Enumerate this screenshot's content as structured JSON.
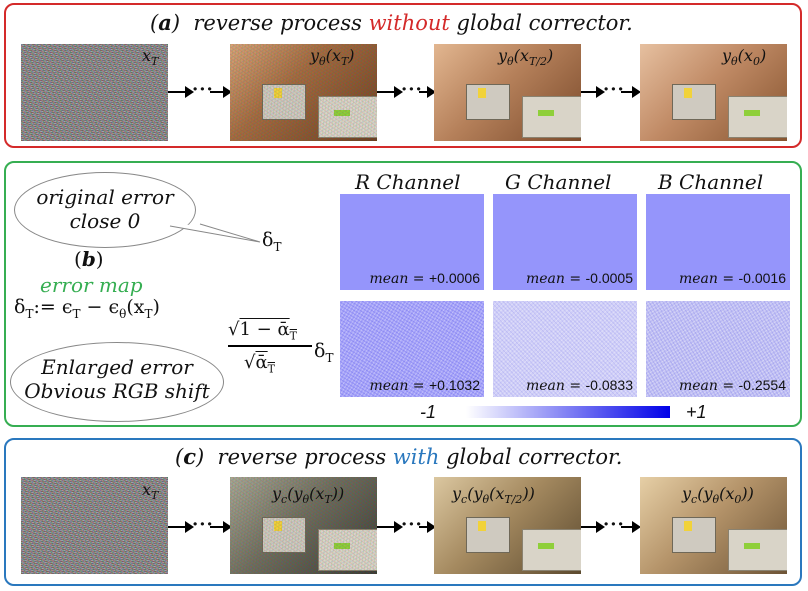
{
  "panel_a": {
    "label": "a",
    "title_before": "reverse process ",
    "title_highlight": "without",
    "title_after": " global corrector.",
    "images": [
      {
        "label": "x_T",
        "kind": "noise"
      },
      {
        "label": "yθ(x_T)",
        "kind": "scene"
      },
      {
        "label": "yθ(x_T/2)",
        "kind": "scene"
      },
      {
        "label": "yθ(x_0)",
        "kind": "scene"
      }
    ]
  },
  "panel_b": {
    "label": "b",
    "bubble_top": [
      "original error",
      "close 0"
    ],
    "delta_T": "δ_T",
    "error_map_label": "error map",
    "definition": "δ_T := ϵ_T − ϵθ(x_T)",
    "scaled_formula_numerator": "√(1 − ᾱ_T)",
    "scaled_formula_denominator": "√ᾱ_T",
    "bubble_bottom": [
      "Enlarged error",
      "Obvious RGB shift"
    ],
    "channels": [
      "R Channel",
      "G Channel",
      "B Channel"
    ],
    "means_original": [
      "+0.0006",
      "-0.0005",
      "-0.0016"
    ],
    "means_enlarged": [
      "+0.1032",
      "-0.0833",
      "-0.2554"
    ],
    "mean_prefix": "mean = ",
    "colorbar": {
      "min_label": "-1",
      "max_label": "+1",
      "min_color": "#ffffff",
      "max_color": "#0000e8"
    }
  },
  "panel_c": {
    "label": "c",
    "title_before": "reverse process ",
    "title_highlight": "with",
    "title_after": " global corrector.",
    "images": [
      {
        "label": "x_T",
        "kind": "noise"
      },
      {
        "label": "y_c(yθ(x_T))",
        "kind": "scene"
      },
      {
        "label": "y_c(yθ(x_T/2))",
        "kind": "scene"
      },
      {
        "label": "y_c(yθ(x_0))",
        "kind": "scene"
      }
    ]
  },
  "colors": {
    "red": "#d42a2a",
    "green": "#36ae52",
    "blue": "#2a78be"
  }
}
